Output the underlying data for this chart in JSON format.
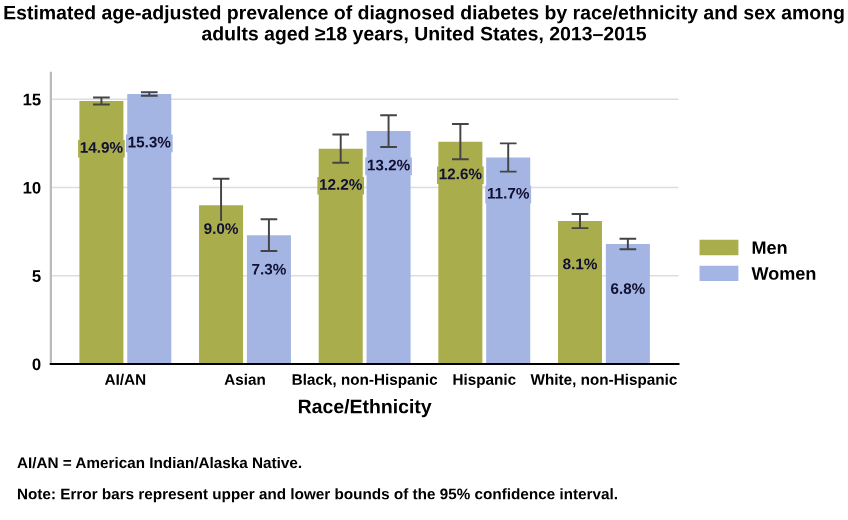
{
  "chart_data": {
    "type": "bar",
    "title": "Estimated age-adjusted prevalence of diagnosed diabetes by race/ethnicity and sex among adults aged ≥18 years, United States, 2013–2015",
    "xlabel": "Race/Ethnicity",
    "categories": [
      "AI/AN",
      "Asian",
      "Black, non-Hispanic",
      "Hispanic",
      "White, non-Hispanic"
    ],
    "series": [
      {
        "name": "Men",
        "color": "#a9ad4c",
        "values": [
          14.9,
          9.0,
          12.2,
          12.6,
          8.1
        ],
        "errors": [
          0.2,
          1.5,
          0.8,
          1.0,
          0.4
        ],
        "value_labels": [
          "14.9%",
          "9.0%",
          "12.2%",
          "12.6%",
          "8.1%"
        ]
      },
      {
        "name": "Women",
        "color": "#a4b5e4",
        "values": [
          15.3,
          7.3,
          13.2,
          11.7,
          6.8
        ],
        "errors": [
          0.1,
          0.9,
          0.9,
          0.8,
          0.3
        ],
        "value_labels": [
          "15.3%",
          "7.3%",
          "13.2%",
          "11.7%",
          "6.8%"
        ]
      }
    ],
    "ylim": [
      0,
      16.5
    ],
    "yticks": [
      0,
      5,
      10,
      15
    ],
    "grid": "y",
    "legend": "right",
    "annotations": [
      "AI/AN = American Indian/Alaska Native.",
      "Note: Error bars represent upper and lower bounds of the 95% confidence interval."
    ]
  }
}
